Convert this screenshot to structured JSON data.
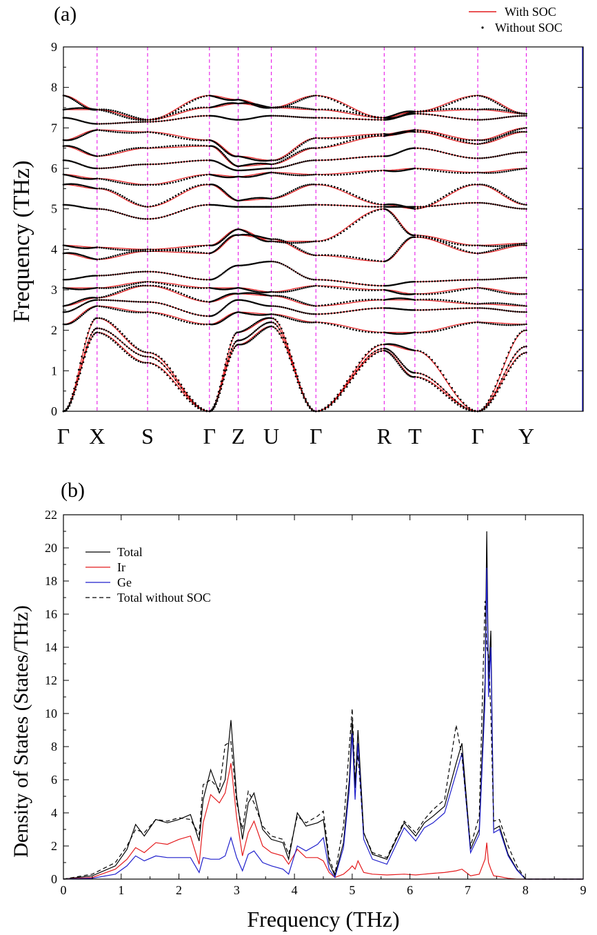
{
  "colors": {
    "with_soc": "#e41a1c",
    "without_soc": "#000000",
    "total": "#000000",
    "ir": "#e41a1c",
    "ge": "#1f1fcc",
    "total_without_soc": "#000000",
    "kpath_line": "#e600e6",
    "axis": "#000000"
  },
  "chart_data": [
    {
      "type": "line",
      "panel_label": "(a)",
      "ylabel": "Frequency (THz)",
      "ylim": [
        0,
        9
      ],
      "y_ticks": [
        "0",
        "1",
        "2",
        "3",
        "4",
        "5",
        "6",
        "7",
        "8",
        "9"
      ],
      "xlim": [
        0,
        10.5
      ],
      "high_symmetry_points": [
        {
          "label": "Γ",
          "x": 0.0
        },
        {
          "label": "X",
          "x": 0.68
        },
        {
          "label": "S",
          "x": 1.7
        },
        {
          "label": "Γ",
          "x": 2.95
        },
        {
          "label": "Z",
          "x": 3.53
        },
        {
          "label": "U",
          "x": 4.2
        },
        {
          "label": "Γ",
          "x": 5.1
        },
        {
          "label": "R",
          "x": 6.48
        },
        {
          "label": "T",
          "x": 7.1
        },
        {
          "label": "Γ",
          "x": 8.37
        },
        {
          "label": "Y",
          "x": 9.35
        }
      ],
      "legend_position": "top-right",
      "series": [
        {
          "name": "With SOC",
          "style": "solid"
        },
        {
          "name": "Without SOC",
          "style": "dotted"
        }
      ],
      "branches": [
        [
          0,
          1.95,
          1.2,
          0,
          1.65,
          2.1,
          0,
          1.5,
          0.85,
          0,
          1.45
        ],
        [
          0,
          2.05,
          1.35,
          0,
          1.75,
          2.2,
          0,
          1.55,
          0.95,
          0,
          1.6
        ],
        [
          0,
          2.3,
          1.45,
          0,
          1.95,
          2.3,
          0,
          1.65,
          1.5,
          0,
          2.0
        ],
        [
          2.15,
          2.6,
          2.45,
          2.15,
          2.45,
          2.4,
          2.2,
          1.95,
          1.95,
          2.2,
          2.15
        ],
        [
          2.45,
          2.75,
          2.7,
          2.35,
          2.75,
          2.6,
          2.4,
          2.55,
          2.5,
          2.55,
          2.45
        ],
        [
          2.6,
          2.8,
          3.1,
          2.7,
          2.9,
          2.85,
          2.6,
          2.75,
          2.75,
          2.65,
          2.6
        ],
        [
          3.05,
          3.05,
          3.2,
          3.05,
          3.05,
          2.95,
          3.1,
          3.0,
          2.9,
          3.05,
          2.9
        ],
        [
          3.25,
          3.35,
          3.45,
          3.25,
          3.6,
          3.7,
          3.25,
          3.1,
          3.2,
          3.25,
          3.3
        ],
        [
          3.9,
          3.75,
          3.95,
          3.9,
          4.35,
          4.25,
          3.85,
          3.7,
          4.3,
          3.9,
          4.1
        ],
        [
          4.1,
          4.05,
          4.0,
          4.1,
          4.5,
          4.2,
          4.2,
          5.0,
          4.35,
          4.1,
          4.15
        ],
        [
          5.1,
          5.0,
          4.75,
          5.1,
          5.05,
          5.05,
          5.1,
          5.05,
          5.05,
          5.15,
          5.0
        ],
        [
          5.6,
          5.5,
          5.05,
          5.6,
          5.2,
          5.25,
          5.6,
          5.1,
          5.0,
          5.6,
          5.1
        ],
        [
          5.85,
          5.75,
          5.6,
          5.85,
          5.8,
          5.9,
          5.85,
          5.95,
          6.0,
          5.9,
          6.0
        ],
        [
          6.2,
          6.0,
          6.1,
          6.2,
          5.95,
          6.0,
          6.2,
          6.3,
          6.5,
          6.25,
          6.4
        ],
        [
          6.55,
          6.3,
          6.5,
          6.55,
          6.05,
          6.1,
          6.5,
          6.8,
          6.9,
          6.6,
          6.9
        ],
        [
          6.7,
          6.95,
          6.9,
          6.7,
          6.3,
          6.2,
          6.75,
          6.85,
          6.95,
          6.7,
          7.0
        ],
        [
          7.25,
          7.1,
          7.15,
          7.3,
          7.2,
          7.3,
          7.25,
          7.2,
          7.35,
          7.2,
          7.3
        ],
        [
          7.45,
          7.45,
          7.2,
          7.5,
          7.6,
          7.5,
          7.45,
          7.25,
          7.4,
          7.45,
          7.35
        ],
        [
          7.8,
          7.45,
          7.2,
          7.8,
          7.7,
          7.5,
          7.8,
          7.25,
          7.4,
          7.8,
          7.35
        ]
      ]
    },
    {
      "type": "line",
      "panel_label": "(b)",
      "xlabel": "Frequency (THz)",
      "ylabel": "Density of States (States/THz)",
      "xlim": [
        0,
        9
      ],
      "ylim": [
        0,
        22
      ],
      "x_ticks": [
        "0",
        "1",
        "2",
        "3",
        "4",
        "5",
        "6",
        "7",
        "8",
        "9"
      ],
      "y_ticks": [
        "0",
        "2",
        "4",
        "6",
        "8",
        "10",
        "12",
        "14",
        "16",
        "18",
        "20",
        "22"
      ],
      "legend_position": "top-left",
      "x": [
        0,
        0.5,
        0.9,
        1.1,
        1.25,
        1.4,
        1.6,
        1.8,
        2.0,
        2.2,
        2.35,
        2.42,
        2.55,
        2.7,
        2.8,
        2.9,
        3.0,
        3.1,
        3.2,
        3.3,
        3.45,
        3.6,
        3.8,
        3.9,
        4.05,
        4.2,
        4.4,
        4.5,
        4.6,
        4.7,
        4.85,
        4.95,
        5.0,
        5.05,
        5.1,
        5.2,
        5.35,
        5.6,
        5.9,
        6.1,
        6.25,
        6.4,
        6.6,
        6.8,
        6.9,
        7.05,
        7.2,
        7.3,
        7.33,
        7.36,
        7.4,
        7.45,
        7.55,
        7.7,
        7.85,
        8.0,
        9.0
      ],
      "series": [
        {
          "name": "Total",
          "style": "solid",
          "values": [
            0,
            0.2,
            0.8,
            1.8,
            3.3,
            2.6,
            3.6,
            3.4,
            3.6,
            3.9,
            2.3,
            4.8,
            6.6,
            5.2,
            6.0,
            9.6,
            5.0,
            2.4,
            4.6,
            5.2,
            3.0,
            2.4,
            2.2,
            1.2,
            4.0,
            3.2,
            3.4,
            3.6,
            1.0,
            0.2,
            2.2,
            6.0,
            9.6,
            5.5,
            9.0,
            2.8,
            1.5,
            1.2,
            3.4,
            2.6,
            3.4,
            3.8,
            4.4,
            7.0,
            8.2,
            1.8,
            3.0,
            12.0,
            21.0,
            12.0,
            15.0,
            3.0,
            3.2,
            1.5,
            0.6,
            0,
            0
          ]
        },
        {
          "name": "Ir",
          "style": "solid",
          "values": [
            0,
            0.1,
            0.6,
            1.2,
            1.9,
            1.6,
            2.2,
            2.1,
            2.4,
            2.6,
            0.9,
            3.4,
            5.1,
            4.6,
            5.2,
            7.0,
            3.7,
            1.4,
            2.8,
            3.5,
            2.0,
            1.6,
            1.4,
            0.9,
            1.8,
            1.3,
            1.3,
            1.1,
            0.4,
            0.1,
            0.3,
            0.6,
            0.8,
            0.6,
            1.1,
            0.4,
            0.3,
            0.25,
            0.3,
            0.25,
            0.3,
            0.35,
            0.4,
            0.5,
            0.6,
            0.2,
            0.3,
            1.2,
            2.2,
            1.0,
            0.6,
            0.2,
            0.15,
            0.05,
            0,
            0,
            0
          ]
        },
        {
          "name": "Ge",
          "style": "solid",
          "values": [
            0,
            0.05,
            0.3,
            0.8,
            1.4,
            1.1,
            1.4,
            1.3,
            1.3,
            1.3,
            0.4,
            1.3,
            1.2,
            1.2,
            1.4,
            2.5,
            1.3,
            0.5,
            1.5,
            1.7,
            1.0,
            0.8,
            0.6,
            0.3,
            2.0,
            1.7,
            2.1,
            2.5,
            0.6,
            0.1,
            1.9,
            5.4,
            8.8,
            4.8,
            8.2,
            2.4,
            1.2,
            0.9,
            3.1,
            2.3,
            3.1,
            3.4,
            4.0,
            6.4,
            7.6,
            1.6,
            2.7,
            10.8,
            18.8,
            11.0,
            14.0,
            2.8,
            3.0,
            1.4,
            0.55,
            0,
            0
          ]
        },
        {
          "name": "Total without SOC",
          "style": "dashed",
          "values": [
            0,
            0.3,
            1.0,
            2.0,
            3.0,
            2.8,
            3.6,
            3.5,
            3.7,
            3.6,
            2.7,
            5.7,
            6.0,
            5.4,
            8.1,
            8.3,
            4.6,
            3.0,
            5.3,
            4.6,
            3.2,
            2.6,
            2.4,
            1.5,
            3.8,
            3.4,
            3.8,
            4.1,
            1.3,
            0.3,
            3.2,
            8.0,
            10.3,
            6.0,
            7.5,
            2.8,
            1.6,
            1.3,
            3.5,
            2.8,
            3.6,
            4.2,
            4.8,
            9.3,
            7.4,
            2.0,
            3.8,
            16.8,
            14.0,
            13.5,
            10.0,
            3.5,
            3.6,
            2.0,
            0.8,
            0,
            0
          ]
        }
      ]
    }
  ]
}
